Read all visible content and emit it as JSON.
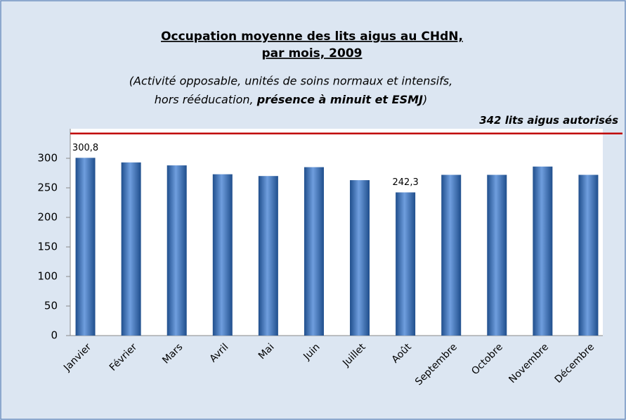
{
  "chart_data": {
    "type": "bar",
    "title": [
      "Occupation moyenne des lits aigus au CHdN,",
      "par mois, 2009"
    ],
    "subtitle": [
      "(Activité opposable, unités de soins normaux et intensifs,",
      "hors rééducation, ",
      "présence à minuit et ESMJ",
      ")"
    ],
    "categories": [
      "Janvier",
      "Février",
      "Mars",
      "Avril",
      "Mai",
      "Juin",
      "Juillet",
      "Août",
      "Septembre",
      "Octobre",
      "Novembre",
      "Décembre"
    ],
    "values": [
      300.8,
      293,
      288,
      273,
      270,
      285,
      263,
      242.3,
      272,
      272,
      286,
      272
    ],
    "value_labels": [
      "300,8",
      null,
      null,
      null,
      null,
      null,
      null,
      "242,3",
      null,
      null,
      null,
      null
    ],
    "color": "#6f9ede",
    "reference_line": {
      "value": 342,
      "label": "342 lits aigus autorisés",
      "color": "#c00000"
    },
    "ylim": [
      0,
      350
    ],
    "yticks": [
      0,
      50,
      100,
      150,
      200,
      250,
      300
    ]
  }
}
